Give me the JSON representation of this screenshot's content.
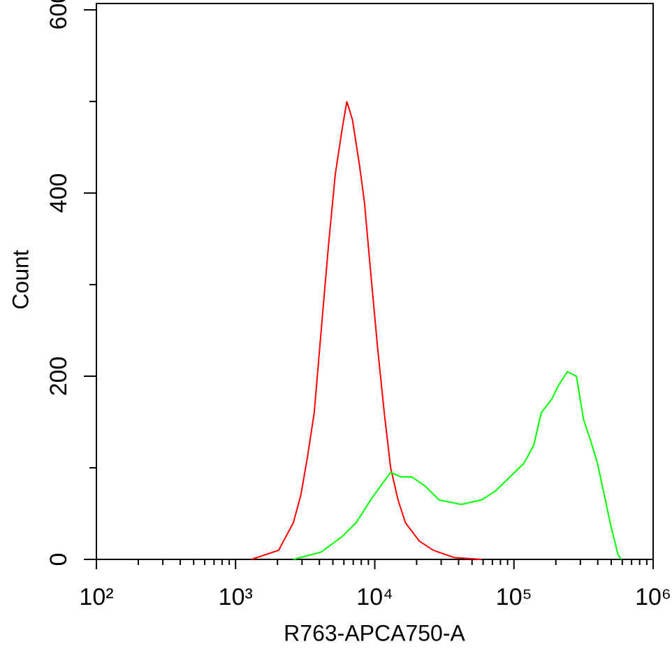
{
  "chart_data": {
    "type": "line",
    "x_label": "R763-APCA750-A",
    "y_label": "Count",
    "x_scale": "log",
    "xlim": [
      100,
      1000000
    ],
    "xticks": [
      {
        "value": 100,
        "label": "10²"
      },
      {
        "value": 1000,
        "label": "10³"
      },
      {
        "value": 10000,
        "label": "10⁴"
      },
      {
        "value": 100000,
        "label": "10⁵"
      },
      {
        "value": 1000000,
        "label": "10⁶"
      }
    ],
    "x_minor_ticks": [
      200,
      300,
      400,
      500,
      600,
      700,
      800,
      900,
      2000,
      3000,
      4000,
      5000,
      6000,
      7000,
      8000,
      9000,
      20000,
      30000,
      40000,
      50000,
      60000,
      70000,
      80000,
      90000,
      200000,
      300000,
      400000,
      500000,
      600000,
      700000,
      800000,
      900000
    ],
    "ylim": [
      0,
      607
    ],
    "yticks": [
      0,
      200,
      400,
      600
    ],
    "y_minor_ticks": [
      100,
      300,
      500
    ],
    "series": [
      {
        "color": "#ff0000",
        "x": [
          1300,
          2040,
          2600,
          2940,
          3270,
          3670,
          4120,
          4630,
          5200,
          5830,
          6300,
          6920,
          7770,
          8430,
          9350,
          10500,
          11700,
          13000,
          14700,
          16600,
          20900,
          26300,
          37300,
          58600
        ],
        "values": [
          0,
          10,
          40,
          70,
          110,
          160,
          250,
          340,
          420,
          470,
          500,
          480,
          430,
          390,
          313,
          230,
          160,
          100,
          65,
          40,
          20,
          10,
          2,
          0
        ]
      },
      {
        "color": "#00ff00",
        "x": [
          2600,
          4120,
          5830,
          7340,
          9350,
          11000,
          13000,
          15500,
          18500,
          23000,
          29000,
          41700,
          58600,
          74000,
          93500,
          118000,
          139000,
          157000,
          187000,
          209000,
          242000,
          281000,
          316000,
          355000,
          398000,
          446000,
          500000,
          560000,
          590000
        ],
        "values": [
          0,
          8,
          25,
          40,
          65,
          80,
          95,
          90,
          90,
          80,
          65,
          60,
          65,
          75,
          90,
          105,
          125,
          160,
          175,
          190,
          205,
          200,
          153,
          130,
          105,
          70,
          35,
          5,
          0
        ]
      }
    ]
  }
}
